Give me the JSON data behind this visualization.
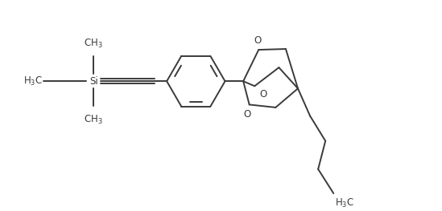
{
  "bg_color": "#ffffff",
  "line_color": "#3a3a3a",
  "line_width": 1.4,
  "font_size": 8.5,
  "figsize": [
    5.49,
    2.63
  ],
  "dpi": 100,
  "xlim": [
    0,
    10
  ],
  "ylim": [
    0,
    5
  ]
}
